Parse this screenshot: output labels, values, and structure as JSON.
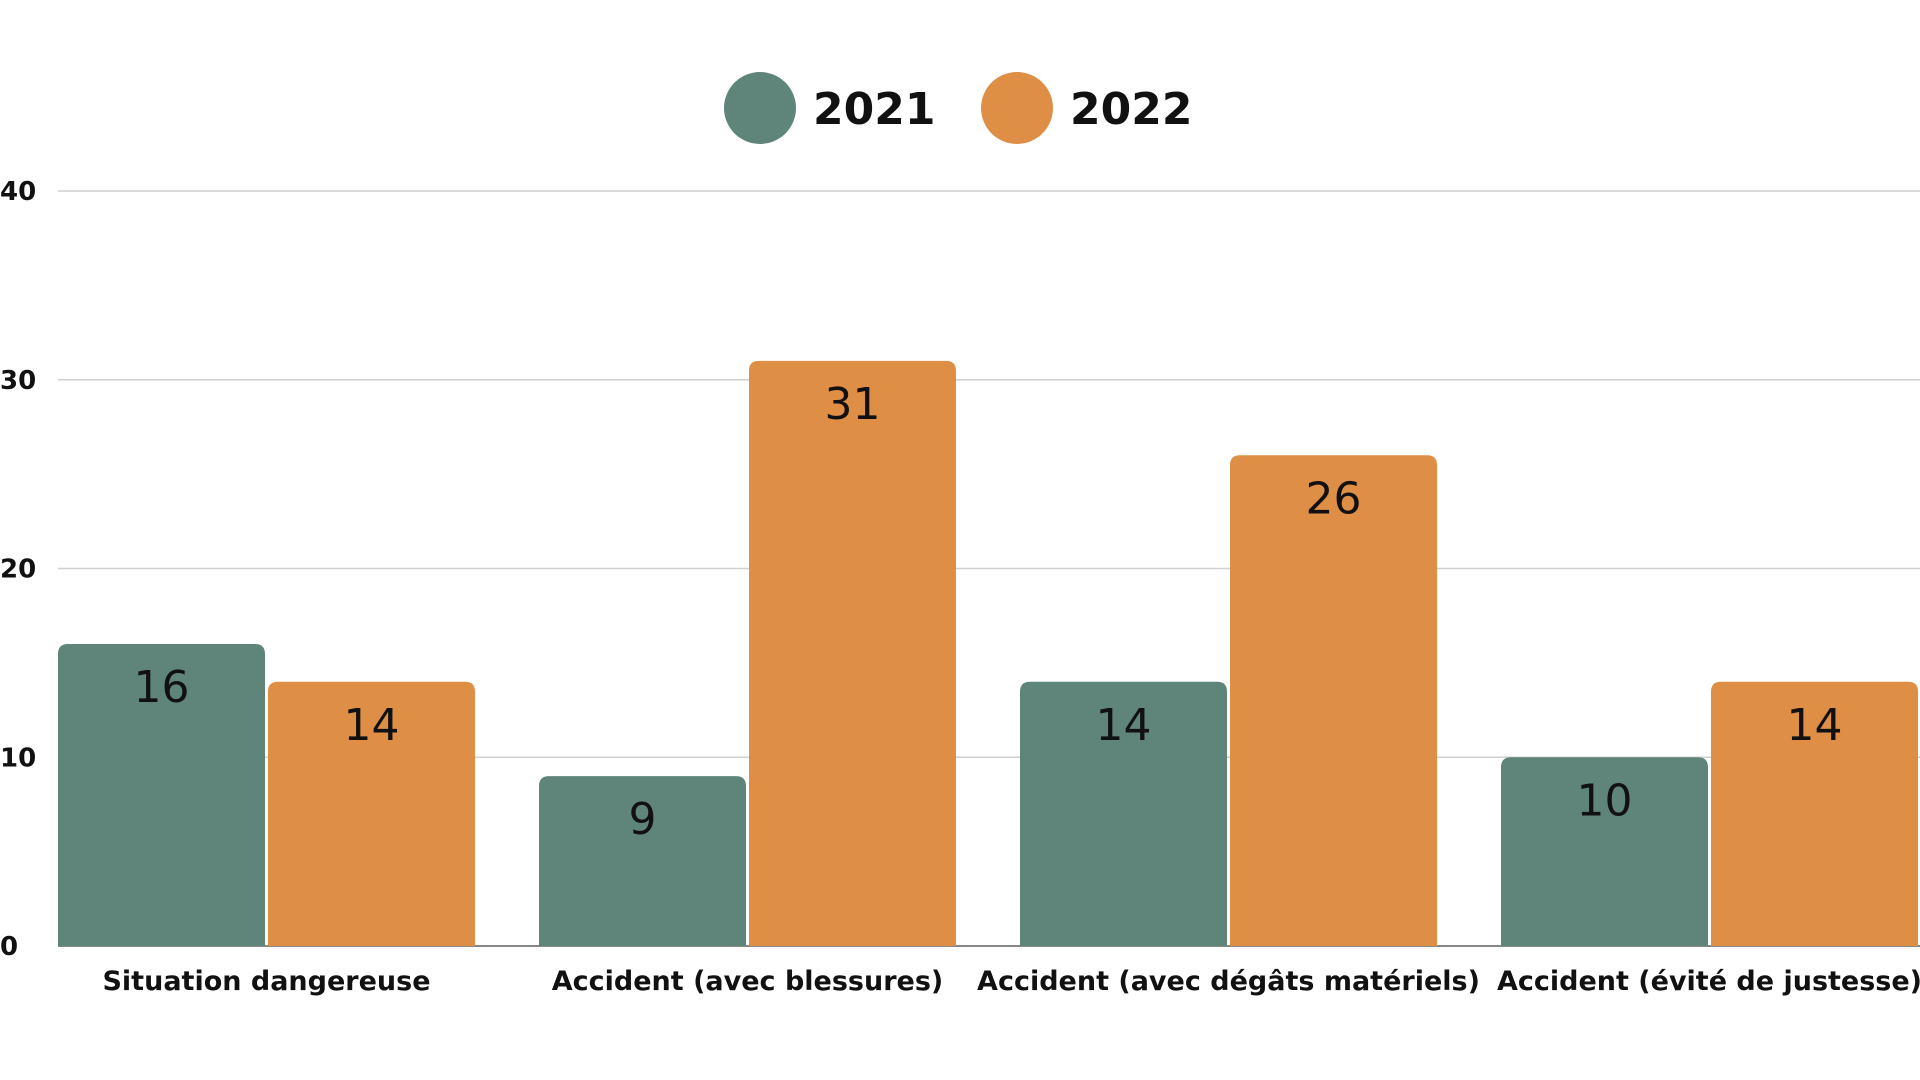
{
  "chart_data": {
    "type": "bar",
    "title": "",
    "xlabel": "",
    "ylabel": "",
    "ylim": [
      0,
      40
    ],
    "yticks": [
      0,
      10,
      20,
      30,
      40
    ],
    "grid": true,
    "legend_position": "top-center",
    "categories": [
      "Situation dangereuse",
      "Accident (avec blessures)",
      "Accident (avec dégâts matériels)",
      "Accident (évité de justesse)"
    ],
    "series": [
      {
        "name": "2021",
        "color": "#5f857b",
        "values": [
          16,
          9,
          14,
          10
        ]
      },
      {
        "name": "2022",
        "color": "#de8e45",
        "values": [
          14,
          31,
          26,
          14
        ]
      }
    ]
  }
}
